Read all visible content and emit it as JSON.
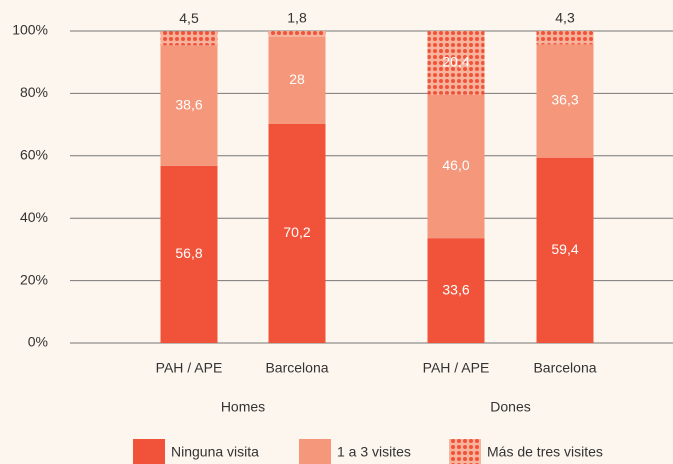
{
  "chart_data": {
    "type": "stacked_bar",
    "categories": [
      "PAH / APE",
      "Barcelona",
      "PAH / APE",
      "Barcelona"
    ],
    "group_labels": [
      "Homes",
      "Dones"
    ],
    "series": [
      {
        "name": "Ninguna visita",
        "color": "#f0533a",
        "values": [
          56.8,
          70.2,
          33.6,
          59.4
        ],
        "value_labels": [
          "56,8",
          "70,2",
          "33,6",
          "59,4"
        ]
      },
      {
        "name": "1 a 3 visites",
        "color": "#f5977a",
        "values": [
          38.6,
          28,
          46.0,
          36.3
        ],
        "value_labels": [
          "38,6",
          "28",
          "46,0",
          "36,3"
        ]
      },
      {
        "name": "Más de tres visites",
        "color": "#f0533a",
        "pattern": "dots",
        "values": [
          4.5,
          1.8,
          20.4,
          4.3
        ],
        "value_labels": [
          "4,5",
          "1,8",
          "20,4",
          "4,3"
        ]
      }
    ],
    "ylim": [
      0,
      100
    ],
    "yticks": [
      {
        "value": 0,
        "label": "0%"
      },
      {
        "value": 20,
        "label": "20%"
      },
      {
        "value": 40,
        "label": "40%"
      },
      {
        "value": 60,
        "label": "60%"
      },
      {
        "value": 80,
        "label": "80%"
      },
      {
        "value": 100,
        "label": "100%"
      }
    ],
    "grid": true
  }
}
